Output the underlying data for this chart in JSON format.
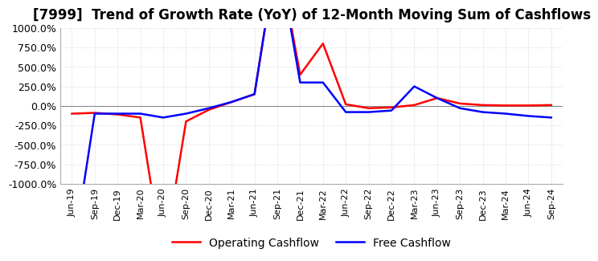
{
  "title": "[7999]  Trend of Growth Rate (YoY) of 12-Month Moving Sum of Cashflows",
  "title_fontsize": 12,
  "ylim": [
    -1000,
    1000
  ],
  "yticks": [
    -1000,
    -750,
    -500,
    -250,
    0,
    250,
    500,
    750,
    1000
  ],
  "yticklabels": [
    "-1000.0%",
    "-750.0%",
    "-500.0%",
    "-250.0%",
    "0.0%",
    "250.0%",
    "500.0%",
    "750.0%",
    "1000.0%"
  ],
  "background_color": "#ffffff",
  "grid_color": "#cccccc",
  "operating_color": "#ff0000",
  "free_color": "#0000ff",
  "x_ticklabels": [
    "Jun-19",
    "Sep-19",
    "Dec-19",
    "Mar-20",
    "Jun-20",
    "Sep-20",
    "Dec-20",
    "Mar-21",
    "Jun-21",
    "Sep-21",
    "Dec-21",
    "Mar-22",
    "Jun-22",
    "Sep-22",
    "Dec-22",
    "Mar-23",
    "Jun-23",
    "Sep-23",
    "Dec-23",
    "Mar-24",
    "Jun-24",
    "Sep-24"
  ],
  "operating_cashflow": [
    -100,
    -90,
    -110,
    -150,
    -2000,
    -200,
    -50,
    50,
    150,
    2000,
    400,
    800,
    20,
    -30,
    -20,
    10,
    100,
    30,
    10,
    5,
    5,
    10
  ],
  "free_cashflow": [
    -2000,
    -100,
    -100,
    -100,
    -150,
    -100,
    -30,
    50,
    150,
    2000,
    300,
    300,
    -80,
    -80,
    -60,
    250,
    100,
    -30,
    -80,
    -100,
    -130,
    -150
  ],
  "legend_labels": [
    "Operating Cashflow",
    "Free Cashflow"
  ]
}
